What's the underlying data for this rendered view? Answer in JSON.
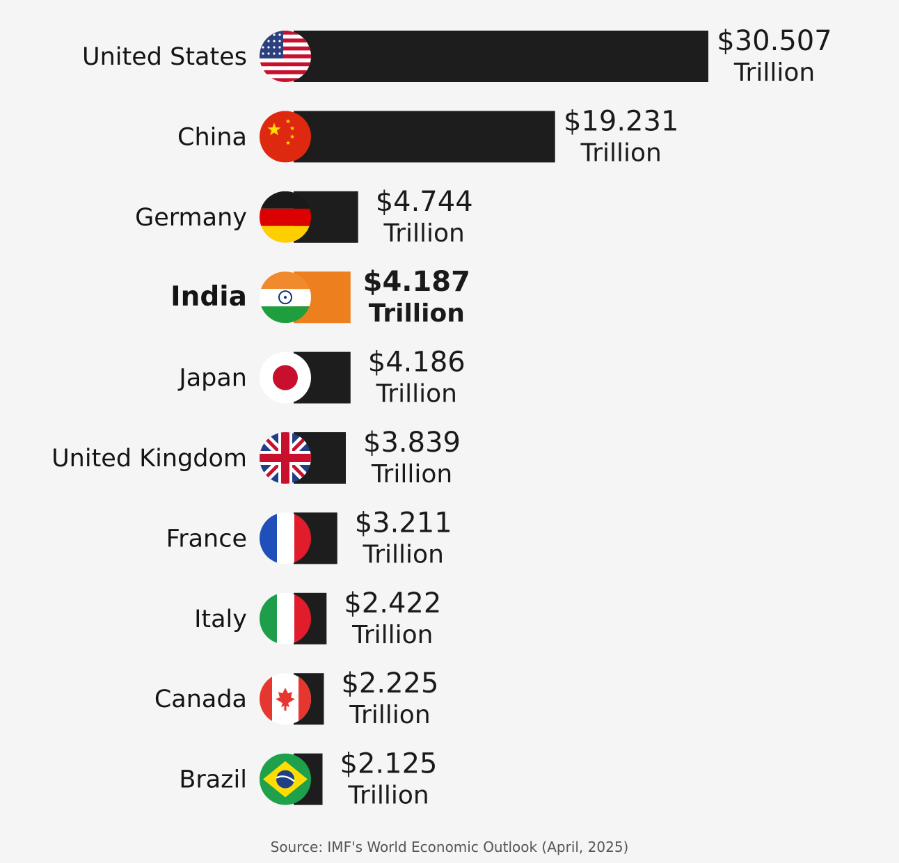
{
  "chart_data": {
    "type": "bar",
    "orientation": "horizontal",
    "categories": [
      "United States",
      "China",
      "Germany",
      "India",
      "Japan",
      "United Kingdom",
      "France",
      "Italy",
      "Canada",
      "Brazil"
    ],
    "values": [
      30.507,
      19.231,
      4.744,
      4.187,
      4.186,
      3.839,
      3.211,
      2.422,
      2.225,
      2.125
    ],
    "value_labels": [
      "$30.507",
      "$19.231",
      "$4.744",
      "$4.187",
      "$4.186",
      "$3.839",
      "$3.211",
      "$2.422",
      "$2.225",
      "$2.125"
    ],
    "unit_label": "Trillion",
    "highlight": "India",
    "colors": {
      "default": "#1d1d1d",
      "highlight": "#ee7f1f",
      "background": "#f5f5f5"
    },
    "flags": [
      "us-flag-icon",
      "china-flag-icon",
      "germany-flag-icon",
      "india-flag-icon",
      "japan-flag-icon",
      "uk-flag-icon",
      "france-flag-icon",
      "italy-flag-icon",
      "canada-flag-icon",
      "brazil-flag-icon"
    ]
  },
  "source": "Source: IMF's World Economic Outlook (April, 2025)"
}
